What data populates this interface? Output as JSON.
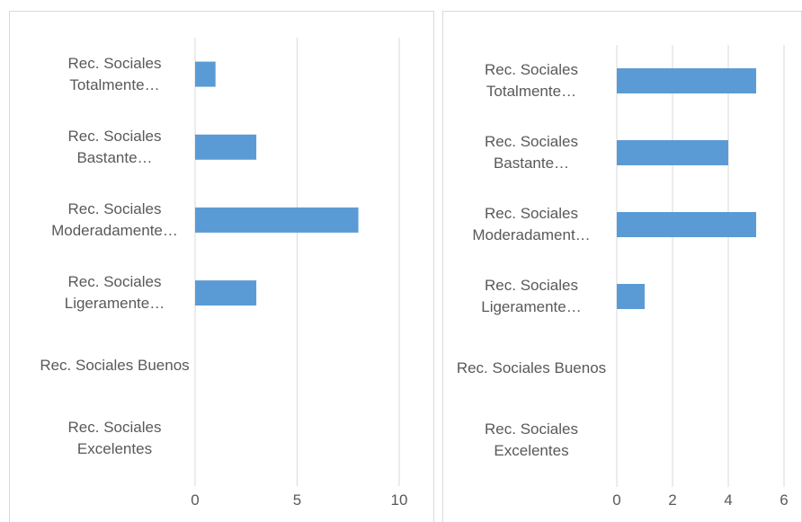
{
  "chart_data": [
    {
      "type": "bar",
      "orientation": "horizontal",
      "categories": [
        "Rec. Sociales Totalmente…",
        "Rec. Sociales Bastante…",
        "Rec. Sociales Moderadamente…",
        "Rec. Sociales Ligeramente…",
        "Rec. Sociales Buenos",
        "Rec. Sociales Excelentes"
      ],
      "values": [
        1,
        3,
        8,
        3,
        0,
        0
      ],
      "color": "#5b9bd5",
      "xlim": [
        0,
        10
      ],
      "xticks": [
        0,
        5,
        10
      ],
      "grid": true
    },
    {
      "type": "bar",
      "orientation": "horizontal",
      "categories": [
        "Rec. Sociales Totalmente…",
        "Rec. Sociales Bastante…",
        "Rec. Sociales Moderadament…",
        "Rec. Sociales Ligeramente…",
        "Rec. Sociales Buenos",
        "Rec. Sociales Excelentes"
      ],
      "values": [
        5,
        4,
        5,
        1,
        0,
        0
      ],
      "color": "#5b9bd5",
      "xlim": [
        0,
        6
      ],
      "xticks": [
        0,
        2,
        4,
        6
      ],
      "grid": true
    }
  ]
}
